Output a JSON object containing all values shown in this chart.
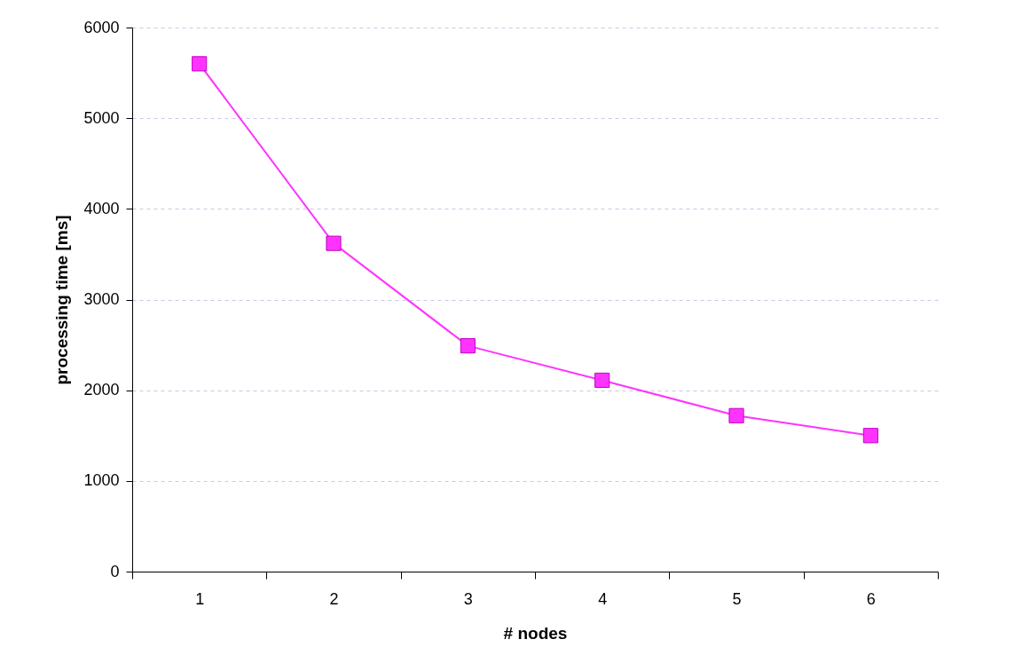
{
  "chart_data": {
    "type": "line",
    "xlabel": "# nodes",
    "ylabel": "processing time [ms]",
    "categories": [
      "1",
      "2",
      "3",
      "4",
      "5",
      "6"
    ],
    "series": [
      {
        "color": "#ff33ff",
        "values": [
          5600,
          3620,
          2490,
          2110,
          1720,
          1500
        ]
      }
    ],
    "ylim": [
      0,
      6000
    ],
    "yticks": [
      0,
      1000,
      2000,
      3000,
      4000,
      5000,
      6000
    ],
    "grid": "y",
    "marker": "square",
    "line_style": "solid"
  }
}
